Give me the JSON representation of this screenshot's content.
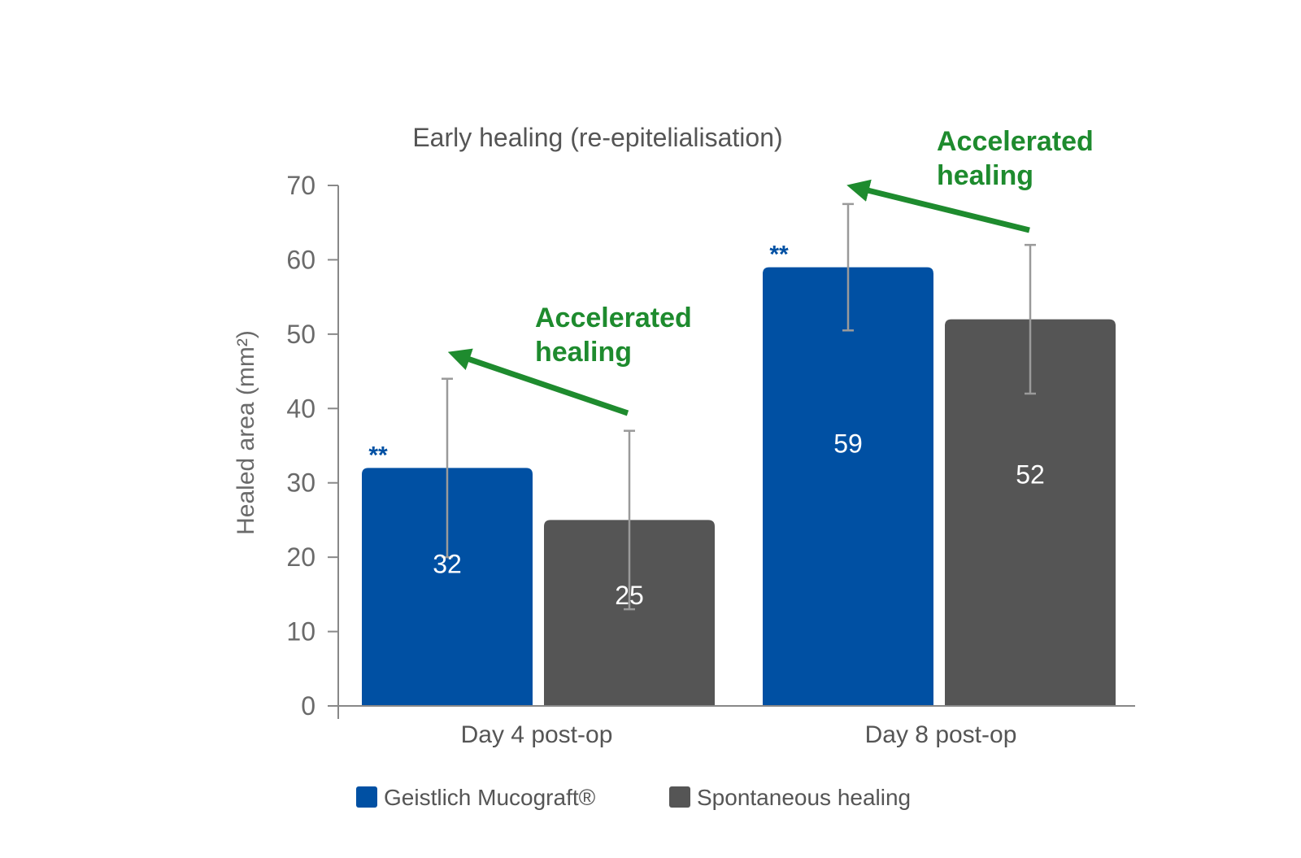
{
  "chart_data": {
    "type": "bar",
    "title": "Early healing (re-epitelialisation)",
    "xlabel": "",
    "ylabel": "Healed area (mm²)",
    "ylim": [
      0,
      70
    ],
    "yticks": [
      0,
      10,
      20,
      30,
      40,
      50,
      60,
      70
    ],
    "grid": false,
    "categories": [
      "Day 4 post-op",
      "Day 8 post-op"
    ],
    "series": [
      {
        "name": "Geistlich Mucograft®",
        "color": "#0050A3",
        "values": [
          32,
          59
        ],
        "error_low": [
          20,
          50.5
        ],
        "error_high": [
          44,
          67.5
        ],
        "significance": [
          "**",
          "**"
        ]
      },
      {
        "name": "Spontaneous healing",
        "color": "#555555",
        "values": [
          25,
          52
        ],
        "error_low": [
          13,
          42
        ],
        "error_high": [
          37,
          62
        ],
        "significance": [
          "",
          ""
        ]
      }
    ],
    "annotations": [
      {
        "text_line1": "Accelerated",
        "text_line2": "healing",
        "category_index": 0,
        "color": "#1E8B2E"
      },
      {
        "text_line1": "Accelerated",
        "text_line2": "healing",
        "category_index": 1,
        "color": "#1E8B2E"
      }
    ],
    "legend_position": "bottom-center"
  }
}
